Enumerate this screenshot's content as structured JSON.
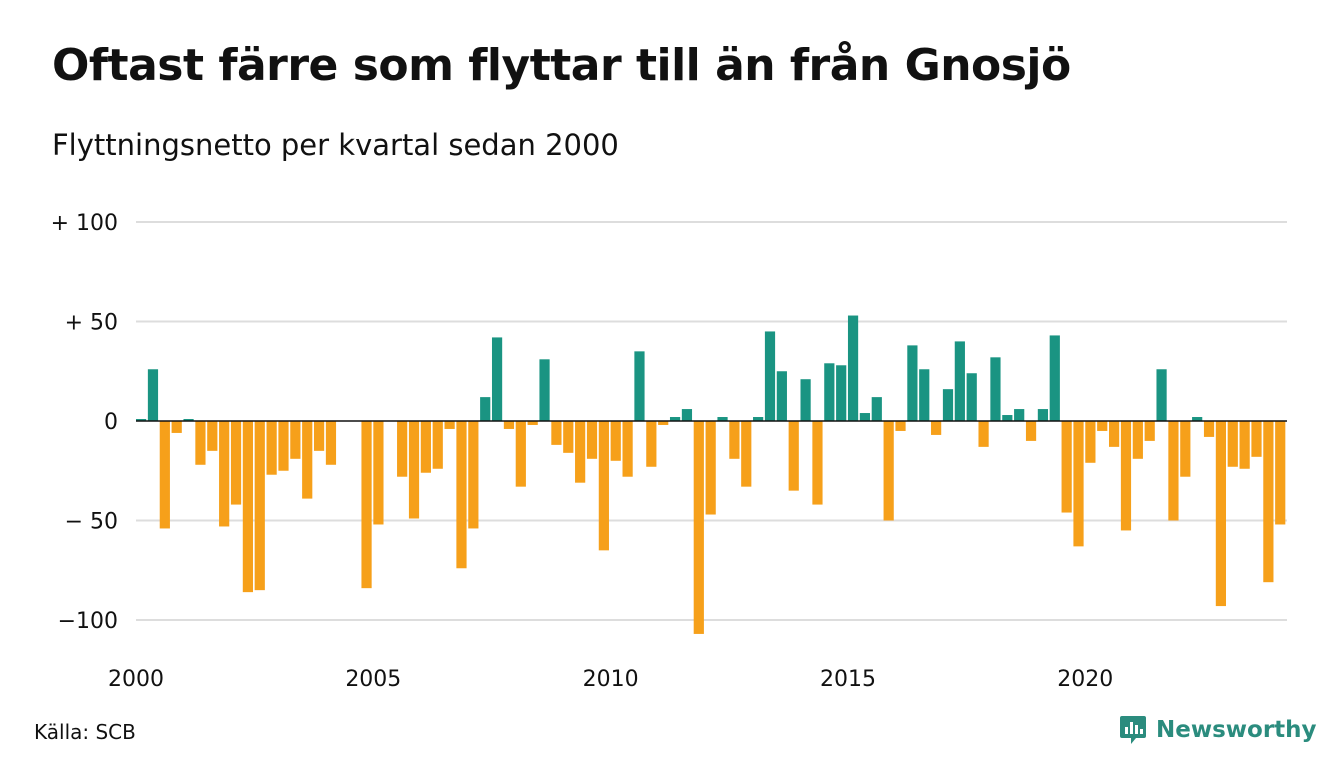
{
  "title": "Oftast färre som flyttar till än från Gnosjö",
  "subtitle": "Flyttningsnetto per kvartal sedan 2000",
  "source": "Källa: SCB",
  "brand": {
    "name": "Newsworthy",
    "icon": "newsworthy-logo-icon"
  },
  "colors": {
    "positive": "#1a9482",
    "negative": "#f6a01a",
    "grid": "#dddddd",
    "baseline": "#111111"
  },
  "chart_data": {
    "type": "bar",
    "xlabel": "",
    "ylabel": "",
    "ylim": [
      -110,
      105
    ],
    "y_ticks": [
      {
        "value": 100,
        "label": "+ 100"
      },
      {
        "value": 50,
        "label": "+  50"
      },
      {
        "value": 0,
        "label": "0"
      },
      {
        "value": -50,
        "label": "− 50"
      },
      {
        "value": -100,
        "label": "−100"
      }
    ],
    "x_ticks": [
      "2000",
      "2005",
      "2010",
      "2015",
      "2020"
    ],
    "grid": true,
    "start": "2000 Q1",
    "series": [
      {
        "values": [
          1,
          26,
          -54,
          -6,
          1,
          -22,
          -15,
          -53,
          -42,
          -86,
          -85,
          -27,
          -25,
          -19,
          -39,
          -15,
          -22,
          0,
          0,
          -84,
          -52,
          0,
          -28,
          -49,
          -26,
          -24,
          -4,
          -74,
          -54,
          12,
          42,
          -4,
          -33,
          -2,
          31,
          -12,
          -16,
          -31,
          -19,
          -65,
          -20,
          -28,
          35,
          -23,
          -2,
          2,
          6,
          -107,
          -47,
          2,
          -19,
          -33,
          2,
          45,
          25,
          -35,
          21,
          -42,
          29,
          28,
          53,
          4,
          12,
          -50,
          -5,
          38,
          26,
          -7,
          16,
          40,
          24,
          -13,
          32,
          3,
          6,
          -10,
          6,
          43,
          -46,
          -63,
          -21,
          -5,
          -13,
          -55,
          -19,
          -10,
          26,
          -50,
          -28,
          2,
          -8,
          -93,
          -23,
          -24,
          -18,
          -81,
          -52
        ]
      }
    ]
  }
}
